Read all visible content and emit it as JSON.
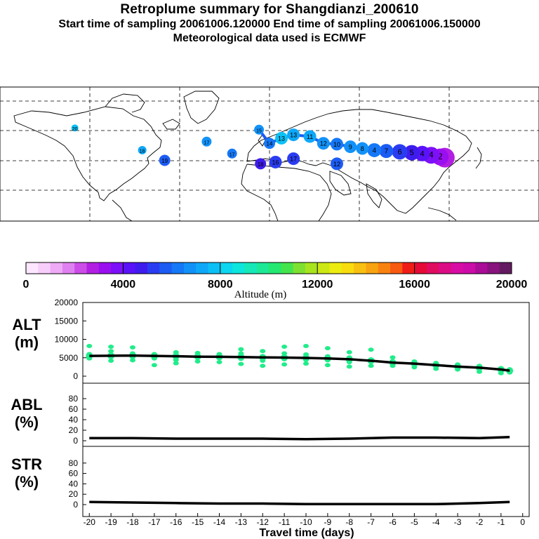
{
  "header": {
    "title": "Retroplume summary for Shangdianzi_200610",
    "sampling": "Start time of sampling 20061006.120000     End time of sampling 20061006.150000",
    "met": "Meteorological data used is ECMWF"
  },
  "colors": {
    "alt_scale": [
      "#fde6ff",
      "#f7cdfb",
      "#eeaaf6",
      "#df80f0",
      "#cc4ce8",
      "#b21fe2",
      "#9a0ff0",
      "#7d10f8",
      "#5a12f8",
      "#3f1cee",
      "#2a3cf2",
      "#1c5cf4",
      "#1578f6",
      "#1292f8",
      "#0fa8f8",
      "#0cc0f6",
      "#0cd6f0",
      "#0ce6dc",
      "#16e8b8",
      "#1ce896",
      "#24e870",
      "#44e44c",
      "#7ee030",
      "#a8e41e",
      "#cce814",
      "#ecec10",
      "#f8dc10",
      "#f8c010",
      "#f8a410",
      "#f88210",
      "#f85a10",
      "#f01c16",
      "#e60a36",
      "#e00c60",
      "#dc0c84",
      "#d80ca4",
      "#cc0ca8",
      "#aa0c98",
      "#88127e",
      "#641a60"
    ],
    "markers": "#21ec8a",
    "line": "#000000"
  },
  "colorbar": {
    "labels": [
      "0",
      "4000",
      "8000",
      "12000",
      "16000",
      "20000"
    ],
    "title": "Altitude (m)"
  },
  "map": {
    "plume_points": [
      {
        "lon": 117.1,
        "lat": 40.6,
        "label": "1",
        "c": "#b21fe2",
        "r": 14
      },
      {
        "lon": 114,
        "lat": 41,
        "label": "2",
        "c": "#9a0ff0",
        "r": 12
      },
      {
        "lon": 108,
        "lat": 42,
        "label": "4",
        "c": "#7d10f8",
        "r": 12
      },
      {
        "lon": 102,
        "lat": 43,
        "label": "4",
        "c": "#5a12f8",
        "r": 11
      },
      {
        "lon": 95,
        "lat": 43.5,
        "label": "5",
        "c": "#3f1cee",
        "r": 11
      },
      {
        "lon": 87,
        "lat": 44,
        "label": "6",
        "c": "#2a3cf2",
        "r": 11
      },
      {
        "lon": 78,
        "lat": 44.5,
        "label": "7",
        "c": "#1c5cf4",
        "r": 10
      },
      {
        "lon": 70,
        "lat": 45,
        "label": "4",
        "c": "#1578f6",
        "r": 10
      },
      {
        "lon": 62,
        "lat": 46,
        "label": "8",
        "c": "#1292f8",
        "r": 9
      },
      {
        "lon": 54,
        "lat": 47,
        "label": "9",
        "c": "#1292f8",
        "r": 9
      },
      {
        "lon": 45,
        "lat": 48.5,
        "label": "10",
        "c": "#1578f6",
        "r": 9
      },
      {
        "lon": 36,
        "lat": 49,
        "label": "12",
        "c": "#1292f8",
        "r": 9
      },
      {
        "lon": 27,
        "lat": 53,
        "label": "11",
        "c": "#0fa8f8",
        "r": 9
      },
      {
        "lon": 16,
        "lat": 54,
        "label": "13",
        "c": "#0fa8f8",
        "r": 9
      },
      {
        "lon": 8,
        "lat": 52,
        "label": "13",
        "c": "#0cc0f6",
        "r": 9
      },
      {
        "lon": 0,
        "lat": 49,
        "label": "14",
        "c": "#1578f6",
        "r": 8
      },
      {
        "lon": -7,
        "lat": 57,
        "label": "15",
        "c": "#1292f8",
        "r": 7
      },
      {
        "lon": -42,
        "lat": 50,
        "label": "17",
        "c": "#1292f8",
        "r": 7
      },
      {
        "lon": -85,
        "lat": 45,
        "label": "18",
        "c": "#0fa8f8",
        "r": 6
      },
      {
        "lon": -130,
        "lat": 58,
        "label": "20",
        "c": "#0cc0f6",
        "r": 5
      },
      {
        "lon": 45,
        "lat": 37,
        "label": "12",
        "c": "#1c5cf4",
        "r": 9
      },
      {
        "lon": 16,
        "lat": 40,
        "label": "17",
        "c": "#2a3cf2",
        "r": 9
      },
      {
        "lon": 4,
        "lat": 38,
        "label": "16",
        "c": "#2a3cf2",
        "r": 9
      },
      {
        "lon": -6,
        "lat": 37,
        "label": "18",
        "c": "#3f1cee",
        "r": 8
      },
      {
        "lon": -25,
        "lat": 43,
        "label": "17",
        "c": "#1578f6",
        "r": 7
      },
      {
        "lon": -70,
        "lat": 39,
        "label": "19",
        "c": "#1c5cf4",
        "r": 8
      }
    ]
  },
  "chart_data": [
    {
      "type": "scatter",
      "name": "ALT",
      "ylabel": "ALT\n(m)",
      "ylim": [
        0,
        20000
      ],
      "yticks": [
        "20000",
        "15000",
        "10000",
        "5000",
        "0"
      ],
      "x": [
        -20,
        -19,
        -18,
        -17,
        -16,
        -15,
        -14,
        -13,
        -12,
        -11,
        -10,
        -9,
        -8,
        -7,
        -6,
        -5,
        -4,
        -3,
        -2,
        -1,
        -0.6
      ],
      "values": [
        5500,
        5550,
        5600,
        5500,
        5400,
        5300,
        5250,
        5200,
        5100,
        5050,
        4950,
        4800,
        4600,
        4200,
        3700,
        3400,
        3000,
        2600,
        2300,
        1800,
        1500
      ],
      "scatter": [
        [
          -20,
          5200
        ],
        [
          -20,
          4800
        ],
        [
          -20,
          6000
        ],
        [
          -20,
          8200
        ],
        [
          -19,
          4200
        ],
        [
          -19,
          5800
        ],
        [
          -19,
          6800
        ],
        [
          -19,
          8000
        ],
        [
          -18,
          4300
        ],
        [
          -18,
          5200
        ],
        [
          -18,
          6200
        ],
        [
          -18,
          7800
        ],
        [
          -17,
          3000
        ],
        [
          -17,
          4800
        ],
        [
          -17,
          6000
        ],
        [
          -16,
          3500
        ],
        [
          -16,
          4400
        ],
        [
          -16,
          5800
        ],
        [
          -16,
          6500
        ],
        [
          -15,
          4000
        ],
        [
          -15,
          5400
        ],
        [
          -15,
          6300
        ],
        [
          -14,
          3800
        ],
        [
          -14,
          4900
        ],
        [
          -14,
          6000
        ],
        [
          -13,
          3300
        ],
        [
          -13,
          4700
        ],
        [
          -13,
          6200
        ],
        [
          -13,
          7300
        ],
        [
          -12,
          2800
        ],
        [
          -12,
          4200
        ],
        [
          -12,
          5400
        ],
        [
          -12,
          6800
        ],
        [
          -11,
          3200
        ],
        [
          -11,
          4600
        ],
        [
          -11,
          6200
        ],
        [
          -11,
          8000
        ],
        [
          -10,
          3400
        ],
        [
          -10,
          4400
        ],
        [
          -10,
          5900
        ],
        [
          -10,
          8200
        ],
        [
          -9,
          3000
        ],
        [
          -9,
          4300
        ],
        [
          -9,
          5400
        ],
        [
          -9,
          7600
        ],
        [
          -8,
          2600
        ],
        [
          -8,
          3800
        ],
        [
          -8,
          5100
        ],
        [
          -8,
          6500
        ],
        [
          -7,
          2800
        ],
        [
          -7,
          3900
        ],
        [
          -7,
          7200
        ],
        [
          -6,
          2800
        ],
        [
          -6,
          3600
        ],
        [
          -6,
          5100
        ],
        [
          -5,
          2400
        ],
        [
          -5,
          3300
        ],
        [
          -5,
          4000
        ],
        [
          -4,
          2000
        ],
        [
          -4,
          2900
        ],
        [
          -4,
          3600
        ],
        [
          -3,
          1800
        ],
        [
          -3,
          2600
        ],
        [
          -3,
          3200
        ],
        [
          -2,
          1200
        ],
        [
          -2,
          2000
        ],
        [
          -2,
          2800
        ],
        [
          -1,
          800
        ],
        [
          -1,
          1400
        ],
        [
          -1,
          2200
        ],
        [
          -0.6,
          1000
        ]
      ]
    },
    {
      "type": "line",
      "name": "ABL",
      "ylabel": "ABL\n(%)",
      "ylim": [
        0,
        100
      ],
      "yticks": [
        "100",
        "80",
        "60",
        "40",
        "20",
        "0"
      ],
      "x": [
        -20,
        -18,
        -16,
        -14,
        -12,
        -10,
        -8,
        -6,
        -4,
        -2,
        -0.6
      ],
      "values": [
        5,
        5,
        4,
        4,
        4,
        3,
        4,
        6,
        6,
        5,
        7
      ]
    },
    {
      "type": "line",
      "name": "STR",
      "ylabel": "STR\n(%)",
      "ylim": [
        0,
        100
      ],
      "yticks": [
        "100",
        "80",
        "60",
        "40",
        "20",
        "0"
      ],
      "x": [
        -20,
        -18,
        -16,
        -14,
        -12,
        -10,
        -8,
        -6,
        -4,
        -2,
        -0.6
      ],
      "values": [
        5,
        4,
        3,
        2,
        2,
        1,
        1,
        1,
        1,
        3,
        5
      ]
    }
  ],
  "xaxis": {
    "ticks": [
      "-20",
      "-19",
      "-18",
      "-17",
      "-16",
      "-15",
      "-14",
      "-13",
      "-12",
      "-11",
      "-10",
      "-9",
      "-8",
      "-7",
      "-6",
      "-5",
      "-4",
      "-3",
      "-2",
      "-1",
      "0"
    ],
    "label": "Travel time (days)"
  }
}
